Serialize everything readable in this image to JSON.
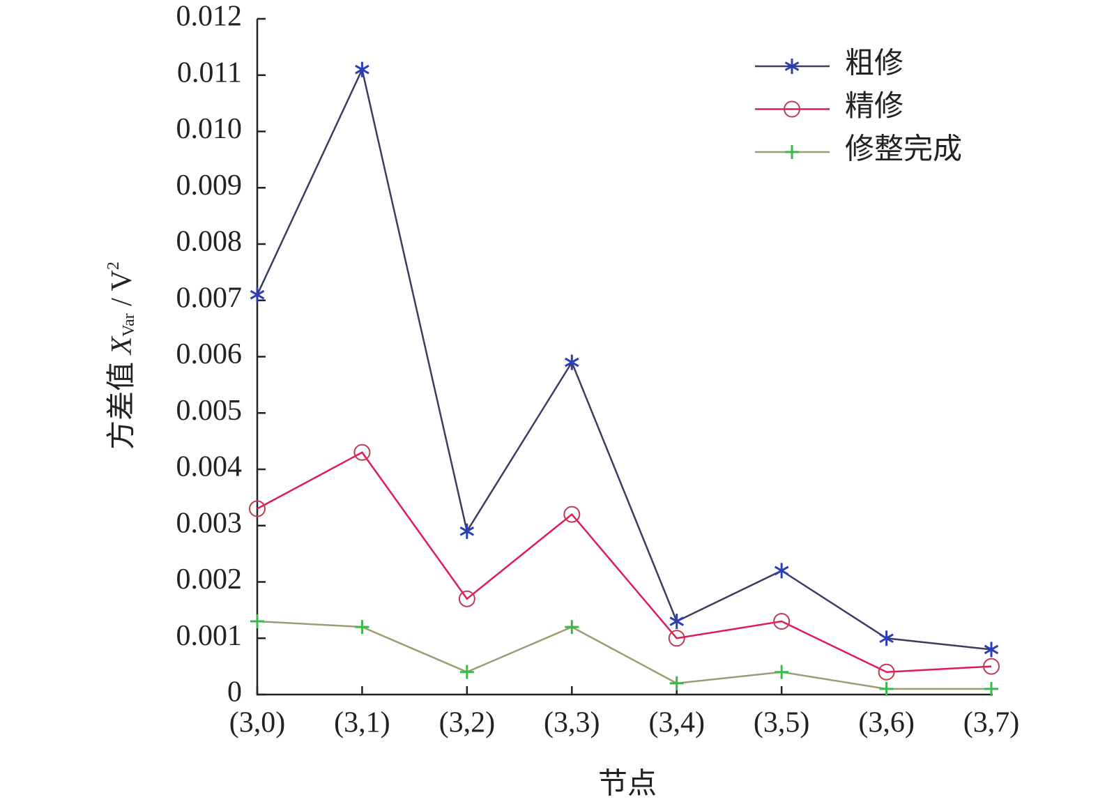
{
  "chart_data": {
    "type": "line",
    "xlabel": "节点",
    "ylabel": [
      "方差值 ",
      "X",
      "Var",
      " / V",
      "2"
    ],
    "categories": [
      "(3,0)",
      "(3,1)",
      "(3,2)",
      "(3,3)",
      "(3,4)",
      "(3,5)",
      "(3,6)",
      "(3,7)"
    ],
    "series": [
      {
        "name": "粗修",
        "color": "#3c3c5e",
        "marker": "star",
        "marker_color": "#2b3fb5",
        "values": [
          0.0071,
          0.0111,
          0.0029,
          0.0059,
          0.0013,
          0.0022,
          0.001,
          0.0008
        ]
      },
      {
        "name": "精修",
        "color": "#e0195a",
        "marker": "circle",
        "marker_color": "#c0394e",
        "values": [
          0.0033,
          0.0043,
          0.0017,
          0.0032,
          0.001,
          0.0013,
          0.0004,
          0.0005
        ]
      },
      {
        "name": "修整完成",
        "color": "#9c9c72",
        "marker": "plus",
        "marker_color": "#3cb84a",
        "values": [
          0.0013,
          0.0012,
          0.0004,
          0.0012,
          0.0002,
          0.0004,
          0.0001,
          0.0001
        ]
      }
    ],
    "ylim": [
      0,
      0.012
    ],
    "yticks": [
      0,
      0.001,
      0.002,
      0.003,
      0.004,
      0.005,
      0.006,
      0.007,
      0.008,
      0.009,
      {
        "value": 0.01,
        "label": "0.010"
      },
      0.011,
      0.012
    ],
    "legend": "upper right"
  }
}
